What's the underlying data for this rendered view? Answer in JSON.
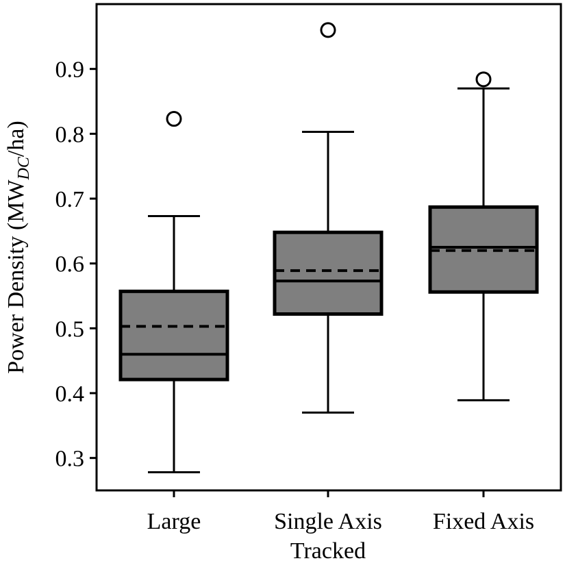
{
  "chart_data": {
    "type": "box",
    "title": "",
    "ylabel": {
      "main": "Power Density (MW",
      "subscript": "DC",
      "suffix": "/ha)"
    },
    "xlabel": "",
    "ylim": [
      0.25,
      1.0
    ],
    "yticks": [
      0.3,
      0.4,
      0.5,
      0.6,
      0.7,
      0.8,
      0.9
    ],
    "ytick_labels": [
      "0.3",
      "0.4",
      "0.5",
      "0.6",
      "0.7",
      "0.8",
      "0.9"
    ],
    "categories": [
      {
        "label_lines": [
          "Large"
        ]
      },
      {
        "label_lines": [
          "Single Axis",
          "Tracked"
        ]
      },
      {
        "label_lines": [
          "Fixed Axis"
        ]
      }
    ],
    "boxes": [
      {
        "whisker_low": 0.278,
        "q1": 0.421,
        "median": 0.46,
        "mean": 0.503,
        "q3": 0.557,
        "whisker_high": 0.673,
        "outliers": [
          0.823
        ]
      },
      {
        "whisker_low": 0.37,
        "q1": 0.522,
        "median": 0.573,
        "mean": 0.589,
        "q3": 0.648,
        "whisker_high": 0.803,
        "outliers": [
          0.96
        ]
      },
      {
        "whisker_low": 0.389,
        "q1": 0.556,
        "median": 0.625,
        "mean": 0.62,
        "q3": 0.687,
        "whisker_high": 0.87,
        "outliers": [
          0.884
        ]
      }
    ],
    "box_fill": "#7f7f7f",
    "line_color": "#000000",
    "grid": false,
    "legend": "none"
  }
}
